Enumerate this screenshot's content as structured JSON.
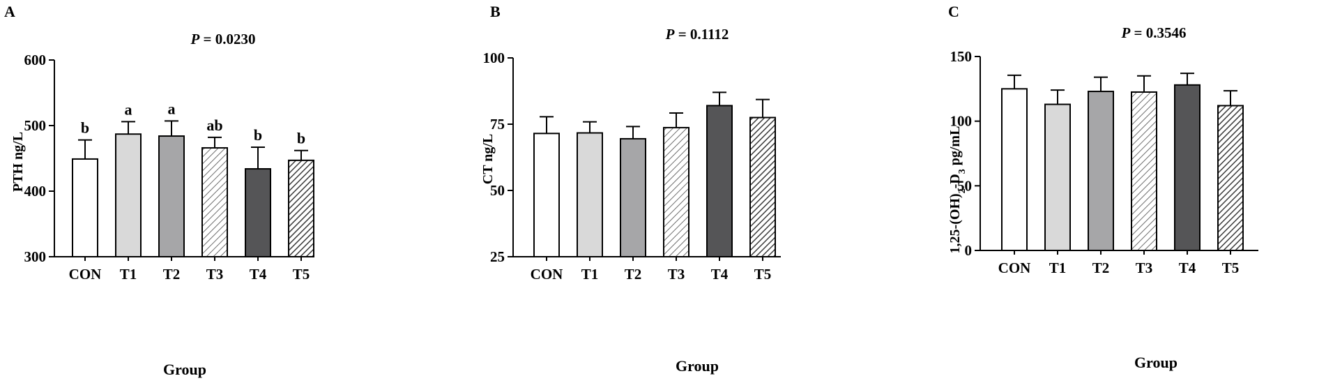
{
  "colors": {
    "CON": "#ffffff",
    "T1": "#d9d9d9",
    "T2": "#a6a6a8",
    "T3": "hatch-light",
    "T4": "#555557",
    "T5": "hatch-dark",
    "axis": "#000000"
  },
  "chart_data": [
    {
      "type": "bar",
      "panel": "A",
      "title": "P = 0.0230",
      "title_parts": [
        "P",
        " =  0.0230"
      ],
      "xlabel": "Group",
      "ylabel": "PTH ng/L",
      "categories": [
        "CON",
        "T1",
        "T2",
        "T3",
        "T4",
        "T5"
      ],
      "values": [
        449,
        487,
        484,
        466,
        434,
        447
      ],
      "error": [
        29,
        19,
        23,
        16,
        33,
        15
      ],
      "significance": [
        "b",
        "a",
        "a",
        "ab",
        "b",
        "b"
      ],
      "ylim": [
        300,
        600
      ],
      "yticks": [
        300,
        400,
        500,
        600
      ],
      "grid": false
    },
    {
      "type": "bar",
      "panel": "B",
      "title": "P = 0.1112",
      "title_parts": [
        "P",
        " = 0.1112"
      ],
      "xlabel": "Group",
      "ylabel": "CT ng/L",
      "categories": [
        "CON",
        "T1",
        "T2",
        "T3",
        "T4",
        "T5"
      ],
      "values": [
        71.5,
        71.7,
        69.5,
        73.7,
        82.0,
        77.5
      ],
      "error": [
        6.3,
        4.2,
        4.6,
        5.5,
        5.0,
        6.8
      ],
      "significance": [],
      "ylim": [
        25,
        100
      ],
      "yticks": [
        25,
        50,
        75,
        100
      ],
      "grid": false
    },
    {
      "type": "bar",
      "panel": "C",
      "title": "P = 0.3546",
      "title_parts": [
        "P",
        " = 0.3546"
      ],
      "xlabel": "Group",
      "ylabel": "1,25-(OH)2-D3 pg/mL",
      "ylabel_parts": [
        "1,25-(OH)",
        "2",
        "-D",
        "3",
        " pg/mL"
      ],
      "categories": [
        "CON",
        "T1",
        "T2",
        "T3",
        "T4",
        "T5"
      ],
      "values": [
        125,
        113,
        123,
        122.5,
        128,
        112
      ],
      "error": [
        10.5,
        11,
        11,
        12.5,
        9,
        11.5
      ],
      "significance": [],
      "ylim": [
        0,
        150
      ],
      "yticks": [
        0,
        50,
        100,
        150
      ],
      "grid": false
    }
  ]
}
